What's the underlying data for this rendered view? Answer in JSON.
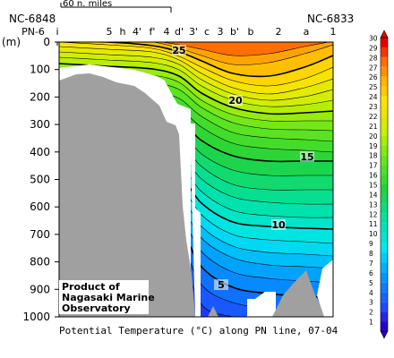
{
  "chart_data": {
    "type": "heatmap",
    "title": "Potential Temperature (°C) along PN line, 07-04",
    "ylabel": "(m)",
    "ylim": [
      1000,
      0
    ],
    "yticks": [
      0,
      100,
      200,
      300,
      400,
      500,
      600,
      700,
      800,
      900,
      1000
    ],
    "station_labels": [
      "PN-6",
      "i",
      "5",
      "h",
      "4'",
      "f'",
      "4",
      "d'",
      "3'",
      "c",
      "3",
      "b'",
      "b",
      "2",
      "a",
      "1"
    ],
    "left_station_id": "NC-6848",
    "right_station_id": "NC-6833",
    "scale_bar_label": "60 n. miles",
    "colorbar": {
      "min": 1,
      "max": 30,
      "ticks": [
        1,
        2,
        3,
        4,
        5,
        6,
        7,
        8,
        9,
        10,
        11,
        12,
        13,
        14,
        15,
        16,
        17,
        18,
        19,
        20,
        21,
        22,
        23,
        24,
        25,
        26,
        27,
        28,
        29,
        30
      ]
    },
    "contour_labels": [
      {
        "value": 25,
        "label": "25"
      },
      {
        "value": 20,
        "label": "20"
      },
      {
        "value": 15,
        "label": "15"
      },
      {
        "value": 10,
        "label": "10"
      },
      {
        "value": 5,
        "label": "5"
      }
    ],
    "source_note": [
      "Product of",
      "Nagasaki Marine",
      "Observatory"
    ]
  }
}
